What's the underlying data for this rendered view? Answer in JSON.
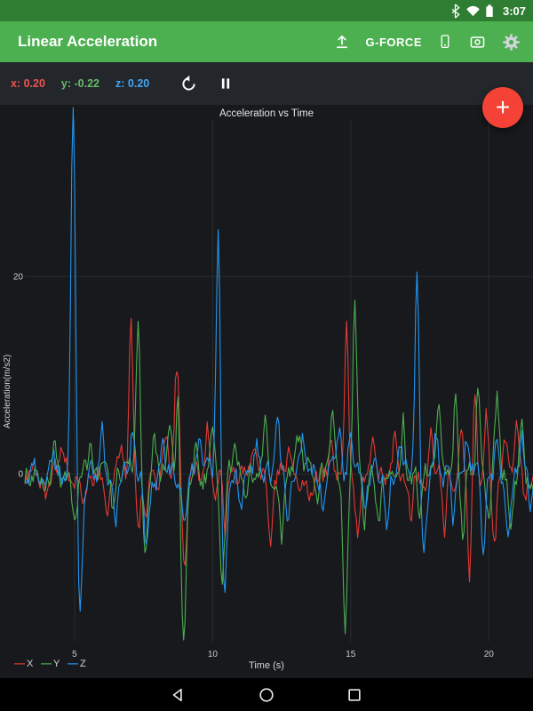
{
  "status_bar": {
    "time": "3:07"
  },
  "app_bar": {
    "title": "Linear Acceleration",
    "gforce_label": "G-FORCE"
  },
  "sensor_bar": {
    "x_readout": "x: 0.20",
    "y_readout": "y: -0.22",
    "z_readout": "z: 0.20"
  },
  "fab": {
    "label": "+"
  },
  "colors": {
    "app_bar": "#4caf50",
    "status_bar": "#2e7d32",
    "toolbar": "#23272b",
    "chart_background": "#17191c",
    "fab": "#f44336",
    "x_series": "#e53935",
    "y_series": "#4caf50",
    "z_series": "#2196f3"
  },
  "chart_data": {
    "type": "line",
    "title": "Acceleration vs Time",
    "xlabel": "Time (s)",
    "ylabel": "Acceleration(m/s2)",
    "x_range": [
      3.2,
      21.6
    ],
    "y_range": [
      -20.7,
      37.4
    ],
    "x_ticks": [
      5,
      10,
      15,
      20
    ],
    "y_ticks": [
      0,
      20
    ],
    "grid": true,
    "legend_position": "bottom-left",
    "legend": [
      {
        "name": "X",
        "color": "#e53935"
      },
      {
        "name": "Y",
        "color": "#4caf50"
      },
      {
        "name": "Z",
        "color": "#2196f3"
      }
    ],
    "sampling": {
      "dt": 0.05,
      "noise_amp": 2.8,
      "seed": 97531
    },
    "series": [
      {
        "name": "X",
        "color": "#e53935",
        "spikes": [
          [
            4.0,
            -3,
            0.15
          ],
          [
            4.6,
            2.5,
            0.12
          ],
          [
            5.3,
            -3,
            0.12
          ],
          [
            6.2,
            -5,
            0.1
          ],
          [
            6.7,
            4,
            0.1
          ],
          [
            7.04,
            15,
            0.1
          ],
          [
            7.3,
            -7,
            0.12
          ],
          [
            7.6,
            -5,
            0.1
          ],
          [
            8.3,
            5,
            0.12
          ],
          [
            8.7,
            11,
            0.12
          ],
          [
            9.0,
            -9,
            0.12
          ],
          [
            9.8,
            5,
            0.1
          ],
          [
            10.1,
            -4,
            0.1
          ],
          [
            10.45,
            -5,
            0.1
          ],
          [
            11.5,
            4,
            0.12
          ],
          [
            12.1,
            -6,
            0.12
          ],
          [
            12.8,
            3,
            0.15
          ],
          [
            13.5,
            -3,
            0.12
          ],
          [
            14.3,
            4,
            0.1
          ],
          [
            14.85,
            16,
            0.1
          ],
          [
            15.25,
            -6,
            0.12
          ],
          [
            15.8,
            3,
            0.1
          ],
          [
            16.6,
            5,
            0.1
          ],
          [
            17.2,
            -4,
            0.1
          ],
          [
            17.9,
            4,
            0.1
          ],
          [
            18.4,
            -6,
            0.1
          ],
          [
            19.0,
            5,
            0.1
          ],
          [
            19.3,
            -10,
            0.1
          ],
          [
            19.5,
            8,
            0.08
          ],
          [
            19.9,
            7,
            0.1
          ],
          [
            20.2,
            -8,
            0.1
          ],
          [
            20.6,
            4,
            0.1
          ],
          [
            21.0,
            5,
            0.1
          ],
          [
            21.3,
            -4,
            0.1
          ]
        ]
      },
      {
        "name": "Y",
        "color": "#4caf50",
        "spikes": [
          [
            4.3,
            3,
            0.12
          ],
          [
            5.0,
            -4,
            0.12
          ],
          [
            5.6,
            3,
            0.1
          ],
          [
            6.4,
            -4,
            0.1
          ],
          [
            7.3,
            14,
            0.1
          ],
          [
            7.55,
            -8,
            0.12
          ],
          [
            7.9,
            4,
            0.1
          ],
          [
            8.45,
            6,
            0.1
          ],
          [
            8.75,
            10,
            0.08
          ],
          [
            8.95,
            -17,
            0.13
          ],
          [
            9.4,
            4,
            0.1
          ],
          [
            10.0,
            5,
            0.1
          ],
          [
            10.35,
            -11,
            0.12
          ],
          [
            10.8,
            3,
            0.1
          ],
          [
            11.2,
            -4,
            0.1
          ],
          [
            11.9,
            6,
            0.1
          ],
          [
            12.5,
            -6,
            0.1
          ],
          [
            13.1,
            4,
            0.12
          ],
          [
            13.8,
            -4,
            0.1
          ],
          [
            14.35,
            5,
            0.1
          ],
          [
            14.8,
            -15,
            0.12
          ],
          [
            15.15,
            17,
            0.1
          ],
          [
            15.5,
            -5,
            0.1
          ],
          [
            16.0,
            -5,
            0.1
          ],
          [
            16.9,
            6,
            0.1
          ],
          [
            17.5,
            -4,
            0.1
          ],
          [
            18.2,
            8,
            0.1
          ],
          [
            18.8,
            8,
            0.1
          ],
          [
            19.05,
            -6,
            0.1
          ],
          [
            19.6,
            9,
            0.1
          ],
          [
            20.0,
            -5,
            0.1
          ],
          [
            20.3,
            7,
            0.1
          ],
          [
            20.8,
            -5,
            0.1
          ],
          [
            21.2,
            6,
            0.1
          ]
        ]
      },
      {
        "name": "Z",
        "color": "#2196f3",
        "spikes": [
          [
            4.2,
            2.5,
            0.12
          ],
          [
            4.95,
            37,
            0.12
          ],
          [
            5.18,
            -14,
            0.13
          ],
          [
            5.6,
            3,
            0.1
          ],
          [
            6.0,
            4,
            0.1
          ],
          [
            6.5,
            -4,
            0.1
          ],
          [
            7.1,
            5,
            0.1
          ],
          [
            7.6,
            -7,
            0.12
          ],
          [
            8.2,
            3,
            0.1
          ],
          [
            9.0,
            -6,
            0.12
          ],
          [
            9.5,
            4,
            0.1
          ],
          [
            10.2,
            25,
            0.1
          ],
          [
            10.42,
            -12,
            0.12
          ],
          [
            11.0,
            -4,
            0.1
          ],
          [
            11.6,
            3,
            0.1
          ],
          [
            12.35,
            5,
            0.1
          ],
          [
            12.7,
            -5,
            0.1
          ],
          [
            13.3,
            3,
            0.12
          ],
          [
            14.0,
            -3,
            0.1
          ],
          [
            14.6,
            4,
            0.1
          ],
          [
            15.0,
            5,
            0.1
          ],
          [
            15.5,
            -4,
            0.1
          ],
          [
            16.3,
            -5,
            0.1
          ],
          [
            16.8,
            4,
            0.1
          ],
          [
            17.4,
            21,
            0.1
          ],
          [
            17.65,
            -9,
            0.12
          ],
          [
            18.1,
            4,
            0.1
          ],
          [
            18.7,
            -6,
            0.1
          ],
          [
            19.2,
            4,
            0.1
          ],
          [
            19.8,
            -9,
            0.1
          ],
          [
            20.3,
            4,
            0.1
          ],
          [
            20.7,
            -6,
            0.1
          ],
          [
            21.2,
            4,
            0.1
          ],
          [
            21.5,
            -3,
            0.1
          ]
        ]
      }
    ]
  }
}
